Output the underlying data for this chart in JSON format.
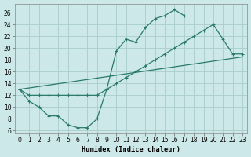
{
  "bg_color": "#cce8e8",
  "grid_color": "#aacccc",
  "line_color": "#2a7a6a",
  "xlabel": "Humidex (Indice chaleur)",
  "xlim": [
    -0.5,
    23.5
  ],
  "ylim": [
    5.5,
    27.5
  ],
  "xticks": [
    0,
    1,
    2,
    3,
    4,
    5,
    6,
    7,
    8,
    9,
    10,
    11,
    12,
    13,
    14,
    15,
    16,
    17,
    18,
    19,
    20,
    21,
    22,
    23
  ],
  "yticks": [
    6,
    8,
    10,
    12,
    14,
    16,
    18,
    20,
    22,
    24,
    26
  ],
  "line1_x": [
    0,
    1,
    2,
    3,
    4,
    5,
    6,
    7,
    8,
    9,
    10,
    11,
    12,
    13,
    14,
    15,
    16,
    17
  ],
  "line1_y": [
    13,
    11,
    10,
    8.5,
    8.5,
    7,
    6.5,
    6.5,
    8,
    13,
    19.5,
    21.5,
    21,
    23.5,
    25,
    25.5,
    26.5,
    25.5
  ],
  "line2_x": [
    0,
    23
  ],
  "line2_y": [
    13,
    18.5
  ],
  "line3_x": [
    0,
    1,
    2,
    3,
    4,
    5,
    6,
    7,
    8,
    9,
    10,
    11,
    12,
    13,
    14,
    15,
    16,
    17,
    18,
    19,
    20,
    21,
    22,
    23
  ],
  "line3_y": [
    13,
    12,
    12,
    12,
    12,
    12,
    12,
    12,
    12,
    13,
    14,
    15,
    16,
    17,
    18,
    19,
    20,
    21,
    22,
    23,
    24,
    21.5,
    19,
    19
  ]
}
